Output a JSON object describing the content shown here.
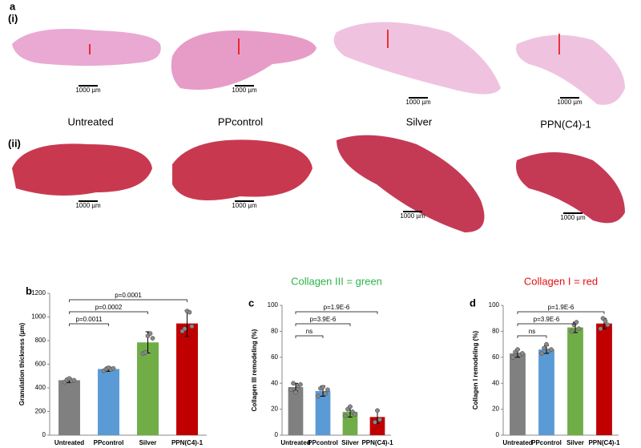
{
  "panel_a": {
    "label": "a",
    "rows": [
      "(i)",
      "(ii)"
    ],
    "groups": [
      "Untreated",
      "PPcontrol",
      "Silver",
      "PPN(C4)-1"
    ],
    "scale_bar": "1000 µm"
  },
  "chart_data": [
    {
      "type": "bar",
      "panel": "b",
      "ylabel": "Granulation thickness (µm)",
      "categories": [
        "Untreated",
        "PPcontrol",
        "Silver",
        "PPN(C4)-1"
      ],
      "values": [
        465,
        560,
        785,
        945
      ],
      "errors": [
        20,
        20,
        90,
        110
      ],
      "points": [
        [
          450,
          470,
          480,
          460,
          465
        ],
        [
          545,
          560,
          570,
          555,
          565
        ],
        [
          690,
          700,
          840,
          860,
          820
        ],
        [
          880,
          900,
          1050,
          1040,
          920
        ]
      ],
      "colors": [
        "#808080",
        "#5b9bd5",
        "#70ad47",
        "#c00000"
      ],
      "ylim": [
        0,
        1200
      ],
      "yticks": [
        0,
        200,
        400,
        600,
        800,
        1000,
        1200
      ],
      "annotations": [
        "p=0.0011",
        "p=0.0002",
        "p=0.0001"
      ]
    },
    {
      "type": "bar",
      "panel": "c",
      "title": "Collagen III = green",
      "title_color": "#2db34a",
      "ylabel": "Collagen III remodeling (%)",
      "categories": [
        "Untreated",
        "PPcontrol",
        "Silver",
        "PPN(C4)-1"
      ],
      "values": [
        37,
        34,
        18,
        14
      ],
      "errors": [
        3,
        4,
        4,
        5
      ],
      "points": [
        [
          35,
          40,
          33,
          38,
          39
        ],
        [
          30,
          36,
          37,
          32,
          35
        ],
        [
          15,
          20,
          22,
          18,
          16
        ],
        [
          10,
          19,
          12
        ]
      ],
      "colors": [
        "#808080",
        "#5b9bd5",
        "#70ad47",
        "#c00000"
      ],
      "ylim": [
        0,
        100
      ],
      "yticks": [
        0,
        20,
        40,
        60,
        80,
        100
      ],
      "annotations": [
        "ns",
        "p=3.9E-6",
        "p=1.9E-6"
      ]
    },
    {
      "type": "bar",
      "panel": "d",
      "title": "Collagen I = red",
      "title_color": "#e01010",
      "ylabel": "Collagen I remodeling (%)",
      "categories": [
        "Untreated",
        "PPcontrol",
        "Silver",
        "PPN(C4)-1"
      ],
      "values": [
        63,
        66,
        83,
        86
      ],
      "errors": [
        3,
        3,
        4,
        4
      ],
      "points": [
        [
          60,
          64,
          66,
          62,
          63
        ],
        [
          63,
          67,
          70,
          65,
          66
        ],
        [
          80,
          85,
          87,
          82
        ],
        [
          82,
          90,
          88,
          85
        ]
      ],
      "colors": [
        "#808080",
        "#5b9bd5",
        "#70ad47",
        "#c00000"
      ],
      "ylim": [
        0,
        100
      ],
      "yticks": [
        0,
        20,
        40,
        60,
        80,
        100
      ],
      "annotations": [
        "ns",
        "p=3.9E-6",
        "p=1.9E-6"
      ]
    }
  ]
}
